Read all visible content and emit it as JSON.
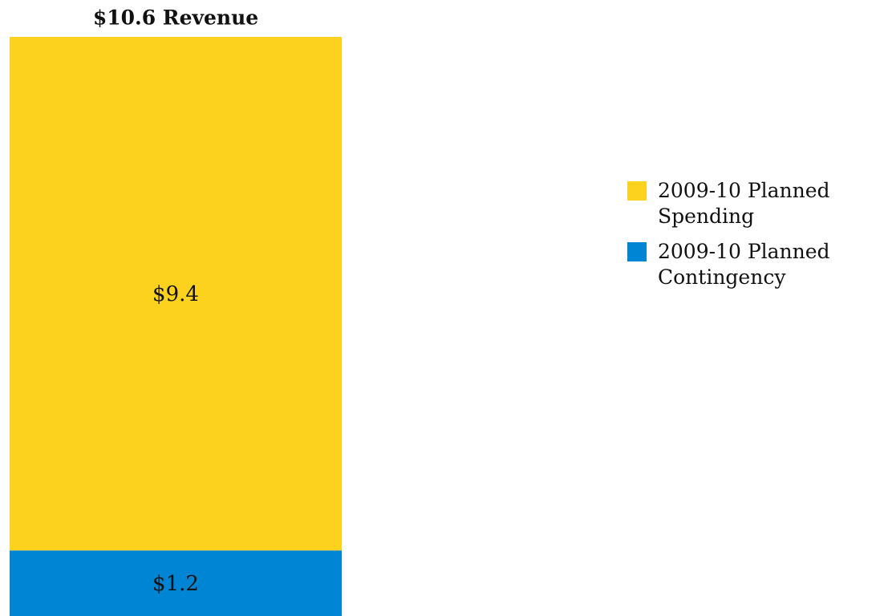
{
  "chart_data": {
    "type": "stacked_bar",
    "title": "$10.6 Revenue",
    "categories": [
      null
    ],
    "series": [
      {
        "name": "2009-10 Planned Spending",
        "color": "#fdd21f",
        "values": [
          9.4
        ],
        "value_labels": [
          "$9.4"
        ]
      },
      {
        "name": "2009-10 Planned Contingency",
        "color": "#0085d4",
        "values": [
          1.2
        ],
        "value_labels": [
          "$1.2"
        ]
      }
    ],
    "ylim": [
      0,
      10.6
    ]
  }
}
